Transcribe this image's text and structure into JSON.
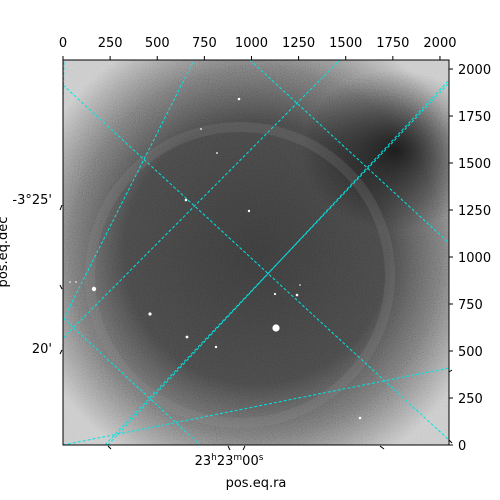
{
  "figure": {
    "xlabel": "pos.eq.ra",
    "ylabel": "pos.eq.dec",
    "top_ticks": [
      "0",
      "250",
      "500",
      "750",
      "1000",
      "1250",
      "1500",
      "1750",
      "2000"
    ],
    "right_ticks": [
      "0",
      "250",
      "500",
      "750",
      "1000",
      "1250",
      "1500",
      "1750",
      "2000"
    ],
    "left_ticks": [
      "-3°25'",
      "20'"
    ],
    "bottom_tick": {
      "base": "23",
      "h": "h",
      "m_val": "23",
      "m": "m",
      "s_val": "00",
      "s": "s"
    },
    "pixel_range": [
      0,
      2048
    ],
    "grid_color": "#00e5e5",
    "image_style": "grayscale astronomical frame with noise, vignette and stars"
  }
}
